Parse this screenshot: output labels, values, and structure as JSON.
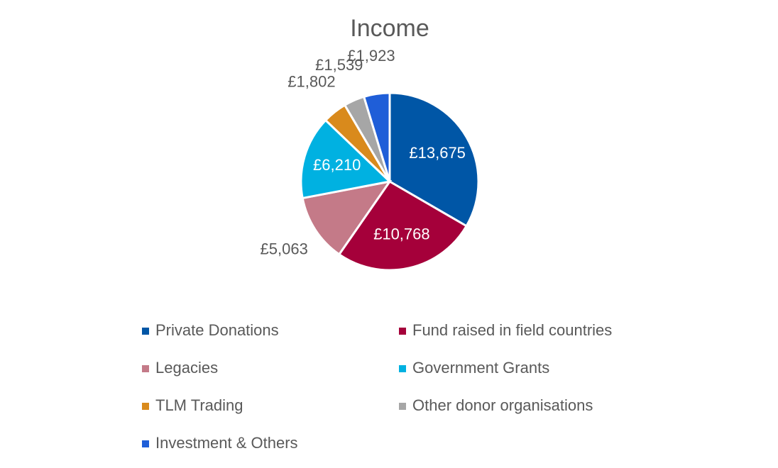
{
  "chart_data": {
    "type": "pie",
    "title": "Income",
    "categories": [
      "Private Donations",
      "Fund raised in field countries",
      "Legacies",
      "Government Grants",
      "TLM Trading",
      "Other donor organisations",
      "Investment & Others"
    ],
    "values": [
      13675,
      10768,
      5063,
      6210,
      1802,
      1539,
      1923
    ],
    "value_labels": [
      "£13,675",
      "£10,768",
      "£5,063",
      "£6,210",
      "£1,802",
      "£1,539",
      "£1,923"
    ],
    "colors": [
      "#0056a6",
      "#a5003a",
      "#c47a88",
      "#00b1e1",
      "#d98a1c",
      "#a6a6a6",
      "#1f5ed8"
    ],
    "legend": "bottom"
  }
}
